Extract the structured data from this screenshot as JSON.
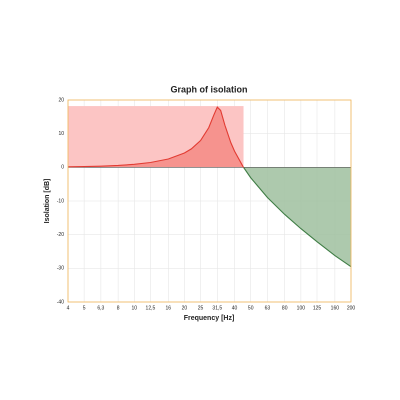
{
  "chart_data": {
    "type": "line",
    "title": "Graph of isolation",
    "x_label": "Frequency [Hz]",
    "y_label": "Isolation [dB]",
    "x": [
      4,
      5,
      6.3,
      8,
      10,
      12.5,
      16,
      20,
      22,
      25,
      28,
      30,
      31.5,
      33,
      35,
      38,
      40,
      45,
      50,
      63,
      80,
      100,
      125,
      160,
      200
    ],
    "values": [
      0.14,
      0.22,
      0.34,
      0.56,
      0.89,
      1.44,
      2.48,
      4.26,
      5.48,
      7.96,
      11.79,
      15.5,
      17.9,
      16.9,
      12.5,
      7.3,
      4.78,
      0.19,
      -3.09,
      -8.95,
      -14.0,
      -18.2,
      -22.1,
      -26.2,
      -29.5
    ],
    "xlim": [
      4,
      200
    ],
    "ylim": [
      -40,
      20
    ],
    "log_x": true,
    "xticks": [
      4,
      5,
      {
        "value": 6.3,
        "label": "6,3"
      },
      8,
      10,
      {
        "value": 12.5,
        "label": "12,5"
      },
      16,
      20,
      25,
      {
        "value": 31.5,
        "label": "31,5"
      },
      40,
      50,
      63,
      80,
      100,
      125,
      160,
      200
    ],
    "yticks": [
      20,
      10,
      0,
      -10,
      -20,
      -30,
      -40
    ],
    "grid": true,
    "positive_color": "#e23b32",
    "negative_color": "#3f7d45",
    "positive_fill": "#f48a85",
    "negative_fill": "#9fbf9f",
    "band_fill": "#fcc5c4",
    "frame_color": "#f2b655"
  }
}
